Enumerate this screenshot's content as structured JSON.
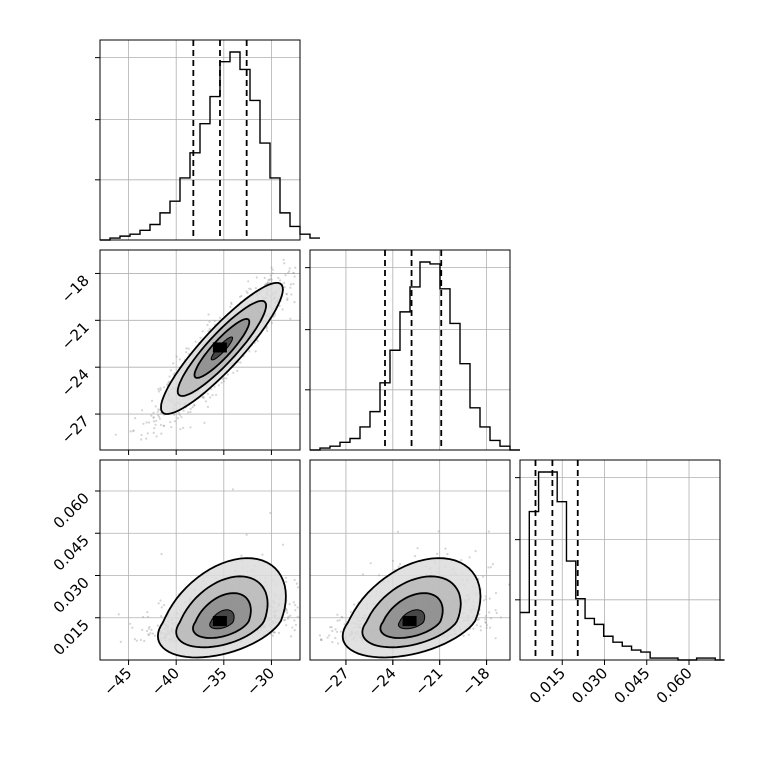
{
  "chart_data": {
    "type": "corner",
    "parameters": [
      "",
      "",
      ""
    ],
    "ranges": [
      [
        -48,
        -27
      ],
      [
        -29.3,
        -16.5
      ],
      [
        0.0,
        0.071
      ]
    ],
    "ticks": [
      [
        -45,
        -40,
        -35,
        -30
      ],
      [
        -27,
        -24,
        -21,
        -18
      ],
      [
        0.015,
        0.03,
        0.045,
        0.06
      ]
    ],
    "tick_labels": [
      [
        "−45",
        "−40",
        "−35",
        "−30"
      ],
      [
        "−27",
        "−24",
        "−21",
        "−18"
      ],
      [
        "0.015",
        "0.030",
        "0.045",
        "0.060"
      ]
    ],
    "quantiles": [
      [
        -38.2,
        -35.4,
        -32.6
      ],
      [
        -24.5,
        -22.8,
        -20.9
      ],
      [
        0.0055,
        0.0115,
        0.0205
      ]
    ],
    "marginals": [
      {
        "bin_edges_start": -48,
        "bin_width": 1.05,
        "counts": [
          0,
          1,
          2,
          3,
          5,
          8,
          14,
          20,
          32,
          45,
          60,
          74,
          92,
          97,
          88,
          72,
          50,
          32,
          14,
          7,
          3,
          1
        ]
      },
      {
        "bin_edges_start": -29.3,
        "bin_width": 0.64,
        "counts": [
          0,
          1,
          2,
          4,
          6,
          12,
          20,
          35,
          52,
          72,
          85,
          98,
          97,
          84,
          66,
          45,
          22,
          12,
          5,
          2,
          0
        ]
      },
      {
        "bin_edges_start": 0.0,
        "bin_width": 0.0033,
        "counts": [
          24,
          75,
          95,
          95,
          80,
          50,
          31,
          21,
          18,
          12,
          9,
          7,
          5,
          4,
          1,
          1,
          1,
          0,
          0,
          1,
          1,
          0
        ]
      }
    ],
    "joint": [
      {
        "x": 0,
        "y": 1,
        "mean": [
          -35.2,
          -22.8
        ],
        "sd": [
          3.2,
          2.1
        ],
        "corr": 0.9
      },
      {
        "x": 0,
        "y": 2,
        "mean": [
          -35.2,
          0.0135
        ],
        "sd": [
          3.2,
          0.008
        ],
        "corr": 0.4
      },
      {
        "x": 1,
        "y": 2,
        "mean": [
          -22.8,
          0.0135
        ],
        "sd": [
          2.1,
          0.008
        ],
        "corr": 0.4
      }
    ],
    "grid": true,
    "colors": {
      "hist": "#000000",
      "scatter": "#a0a0a0",
      "grid": "#b0b0b0",
      "density": "#000000"
    }
  }
}
